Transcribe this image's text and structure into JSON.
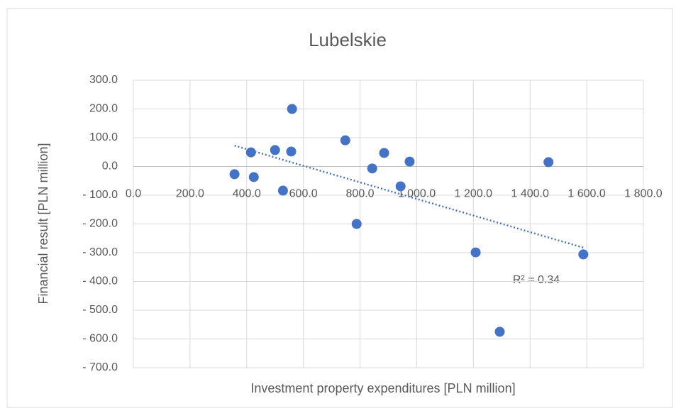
{
  "chart_data": {
    "type": "scatter",
    "title": "Lubelskie",
    "x_label": "Investment property expenditures [PLN million]",
    "y_label": "Financial result [PLN million]",
    "annotation": "R² = 0.34",
    "trendline": "linear",
    "color": "#4472c4",
    "grid": true,
    "x": [
      357,
      415,
      425,
      500,
      528,
      557,
      560,
      748,
      788,
      843,
      885,
      943,
      975,
      1208,
      1293,
      1465,
      1588
    ],
    "values": [
      -27,
      49,
      -37,
      57,
      -84,
      52,
      200,
      91,
      -200,
      -7,
      47,
      -69,
      17,
      -299,
      -575,
      15,
      -306
    ],
    "xlim": [
      0,
      1800
    ],
    "xticks": [
      {
        "value": 0,
        "label": "0.0"
      },
      {
        "value": 200,
        "label": "200.0"
      },
      {
        "value": 400,
        "label": "400.0"
      },
      {
        "value": 600,
        "label": "600.0"
      },
      {
        "value": 800,
        "label": "800.0"
      },
      {
        "value": 1000,
        "label": "1 000.0"
      },
      {
        "value": 1200,
        "label": "1 200.0"
      },
      {
        "value": 1400,
        "label": "1 400.0"
      },
      {
        "value": 1600,
        "label": "1 600.0"
      },
      {
        "value": 1800,
        "label": "1 800.0"
      }
    ],
    "ylim": [
      -700,
      300
    ],
    "yticks": [
      {
        "value": 300,
        "label": "300.0"
      },
      {
        "value": 200,
        "label": "200.0"
      },
      {
        "value": 100,
        "label": "100.0"
      },
      {
        "value": 0,
        "label": "0.0"
      },
      {
        "value": -100,
        "label": "- 100.0"
      },
      {
        "value": -200,
        "label": "- 200.0"
      },
      {
        "value": -300,
        "label": "- 300.0"
      },
      {
        "value": -400,
        "label": "- 400.0"
      },
      {
        "value": -500,
        "label": "- 500.0"
      },
      {
        "value": -600,
        "label": "- 600.0"
      },
      {
        "value": -700,
        "label": "- 700.0"
      }
    ]
  }
}
